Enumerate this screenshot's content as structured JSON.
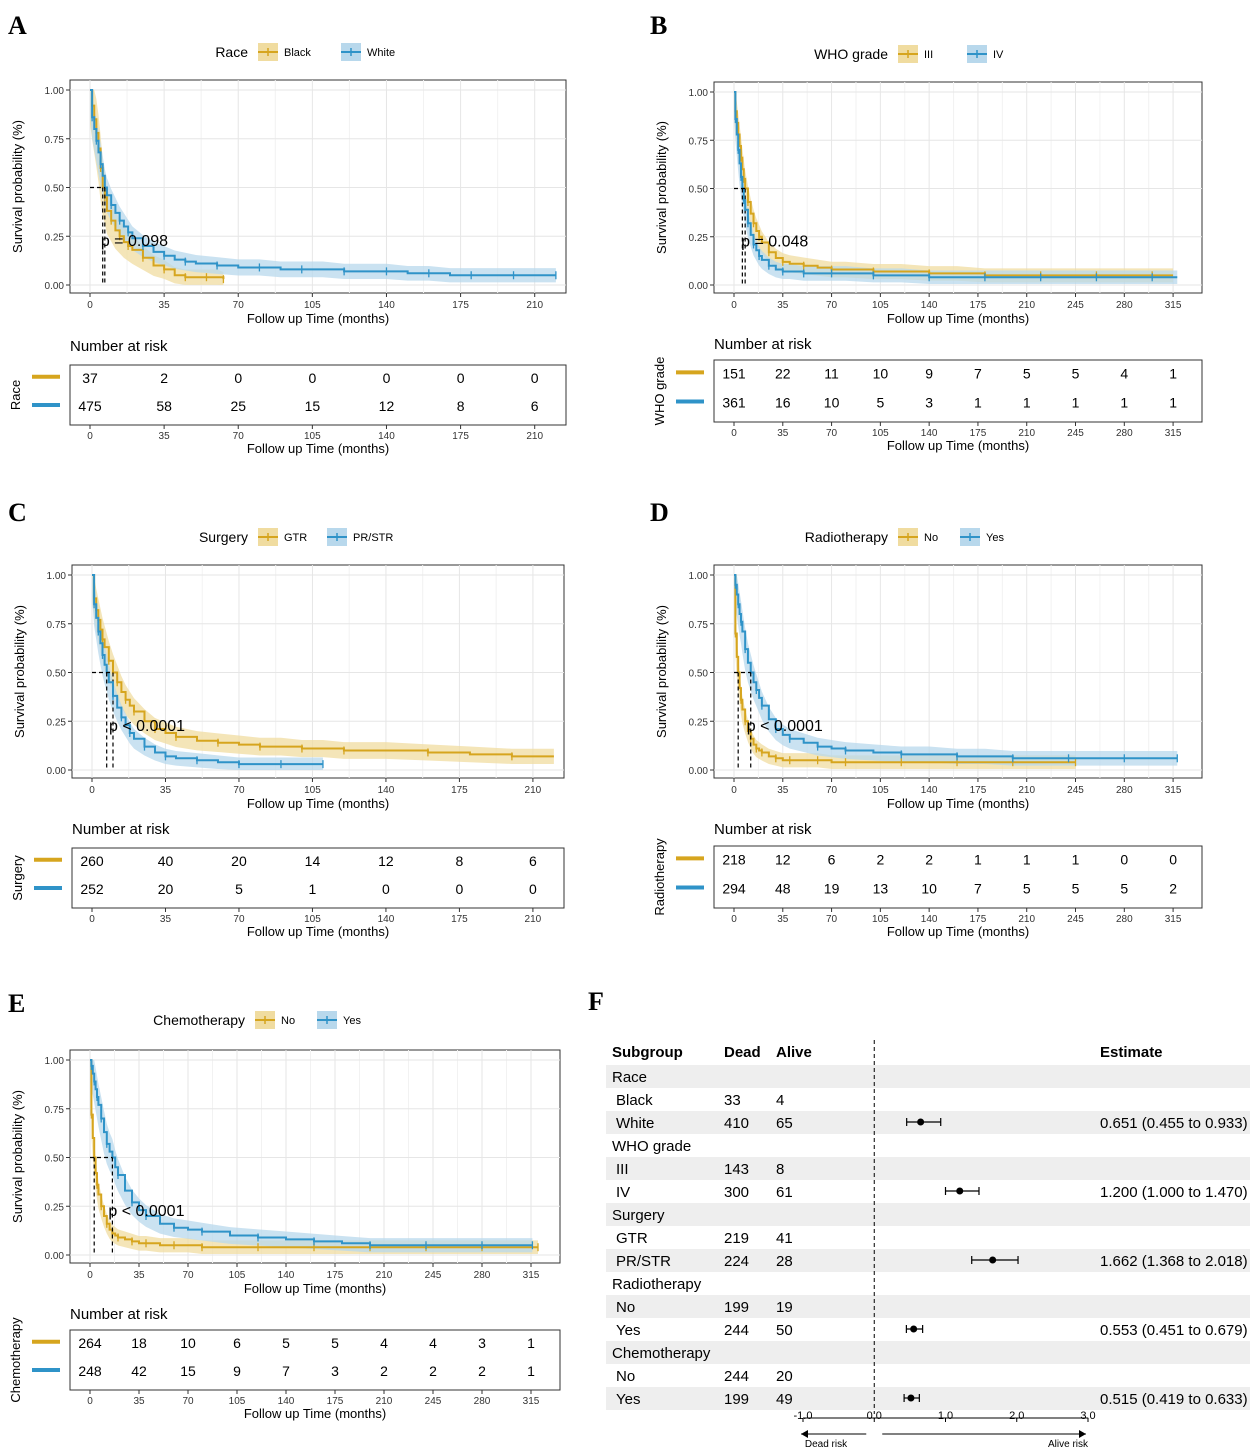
{
  "colors": {
    "black_or_no": "#d6a51e",
    "white_or_yes": "#2f93c8",
    "band_a": "#f0dca0",
    "band_b": "#b8d8ec",
    "forest_stripe": "#eeeeee"
  },
  "risk_title": "Number at risk",
  "y_axis_label": "Survival probability (%)",
  "x_axis_label": "Follow up Time (months)",
  "chart_data": [
    {
      "panel": "A",
      "type": "line",
      "legend_title": "Race",
      "legend_position": "top",
      "series": [
        {
          "name": "Black",
          "median": 6,
          "x": [
            0,
            1,
            2,
            3,
            4,
            5,
            6,
            7,
            8,
            10,
            12,
            14,
            16,
            18,
            20,
            25,
            30,
            35,
            40,
            45,
            50,
            55,
            60,
            63
          ],
          "y": [
            1.0,
            0.92,
            0.85,
            0.78,
            0.7,
            0.6,
            0.5,
            0.45,
            0.38,
            0.33,
            0.28,
            0.25,
            0.22,
            0.2,
            0.18,
            0.14,
            0.1,
            0.08,
            0.05,
            0.04,
            0.04,
            0.04,
            0.04,
            0.03
          ]
        },
        {
          "name": "White",
          "median": 7,
          "x": [
            0,
            1,
            2,
            3,
            4,
            5,
            6,
            7,
            8,
            10,
            12,
            14,
            16,
            18,
            20,
            25,
            30,
            35,
            40,
            45,
            50,
            60,
            70,
            80,
            90,
            100,
            110,
            120,
            130,
            140,
            150,
            160,
            170,
            180,
            190,
            200,
            210,
            220
          ],
          "y": [
            1.0,
            0.86,
            0.8,
            0.74,
            0.68,
            0.62,
            0.56,
            0.5,
            0.46,
            0.41,
            0.37,
            0.33,
            0.3,
            0.27,
            0.24,
            0.2,
            0.17,
            0.15,
            0.13,
            0.12,
            0.11,
            0.1,
            0.09,
            0.09,
            0.08,
            0.08,
            0.08,
            0.07,
            0.07,
            0.07,
            0.06,
            0.06,
            0.05,
            0.05,
            0.05,
            0.05,
            0.05,
            0.05
          ]
        }
      ],
      "pvalue": "p = 0.098",
      "ylim": [
        0,
        1
      ],
      "yticks": [
        "0.00",
        "0.25",
        "0.50",
        "0.75",
        "1.00"
      ],
      "xticks": [
        0,
        35,
        70,
        105,
        140,
        175,
        210
      ],
      "xmax": 221,
      "risk_label": "Race",
      "risk": [
        [
          37,
          2,
          0,
          0,
          0,
          0,
          0
        ],
        [
          475,
          58,
          25,
          15,
          12,
          8,
          6
        ]
      ]
    },
    {
      "panel": "B",
      "type": "line",
      "legend_title": "WHO grade",
      "legend_position": "top",
      "series": [
        {
          "name": "III",
          "median": 8,
          "x": [
            0,
            1,
            2,
            3,
            4,
            5,
            6,
            7,
            8,
            10,
            12,
            14,
            16,
            18,
            20,
            25,
            30,
            35,
            40,
            50,
            60,
            70,
            80,
            100,
            120,
            140,
            160,
            180,
            200,
            220,
            240,
            260,
            280,
            300,
            315
          ],
          "y": [
            1.0,
            0.9,
            0.84,
            0.78,
            0.72,
            0.66,
            0.6,
            0.55,
            0.5,
            0.43,
            0.37,
            0.32,
            0.28,
            0.25,
            0.22,
            0.17,
            0.14,
            0.12,
            0.11,
            0.1,
            0.09,
            0.08,
            0.08,
            0.07,
            0.07,
            0.06,
            0.06,
            0.05,
            0.05,
            0.05,
            0.05,
            0.05,
            0.05,
            0.05,
            0.05
          ]
        },
        {
          "name": "IV",
          "median": 6,
          "x": [
            0,
            1,
            2,
            3,
            4,
            5,
            6,
            7,
            8,
            10,
            12,
            14,
            16,
            18,
            20,
            25,
            30,
            35,
            40,
            50,
            60,
            70,
            80,
            100,
            120,
            140,
            160,
            180,
            200,
            220,
            240,
            260,
            280,
            300,
            318
          ],
          "y": [
            1.0,
            0.86,
            0.78,
            0.7,
            0.63,
            0.56,
            0.5,
            0.44,
            0.39,
            0.32,
            0.26,
            0.21,
            0.18,
            0.15,
            0.13,
            0.1,
            0.08,
            0.07,
            0.07,
            0.06,
            0.06,
            0.06,
            0.06,
            0.05,
            0.05,
            0.04,
            0.04,
            0.04,
            0.04,
            0.04,
            0.04,
            0.04,
            0.04,
            0.04,
            0.04
          ]
        }
      ],
      "pvalue": "p = 0.048",
      "ylim": [
        0,
        1
      ],
      "yticks": [
        "0.00",
        "0.25",
        "0.50",
        "0.75",
        "1.00"
      ],
      "xticks": [
        0,
        35,
        70,
        105,
        140,
        175,
        210,
        245,
        280,
        315
      ],
      "xmax": 330,
      "risk_label": "WHO grade",
      "risk": [
        [
          151,
          22,
          11,
          10,
          9,
          7,
          5,
          5,
          4,
          1
        ],
        [
          361,
          16,
          10,
          5,
          3,
          1,
          1,
          1,
          1,
          1
        ]
      ]
    },
    {
      "panel": "C",
      "type": "line",
      "legend_title": "Surgery",
      "legend_position": "top",
      "series": [
        {
          "name": "GTR",
          "median": 10,
          "x": [
            0,
            1,
            2,
            3,
            4,
            5,
            6,
            8,
            10,
            12,
            14,
            16,
            18,
            20,
            25,
            30,
            35,
            40,
            50,
            60,
            70,
            80,
            90,
            100,
            110,
            120,
            140,
            160,
            180,
            200,
            220
          ],
          "y": [
            1.0,
            0.88,
            0.82,
            0.77,
            0.72,
            0.67,
            0.63,
            0.56,
            0.5,
            0.45,
            0.4,
            0.36,
            0.33,
            0.3,
            0.25,
            0.21,
            0.19,
            0.17,
            0.15,
            0.14,
            0.13,
            0.12,
            0.12,
            0.11,
            0.11,
            0.1,
            0.1,
            0.09,
            0.08,
            0.07,
            0.07
          ]
        },
        {
          "name": "PR/STR",
          "median": 7,
          "x": [
            0,
            1,
            2,
            3,
            4,
            5,
            6,
            7,
            8,
            10,
            12,
            14,
            16,
            18,
            20,
            25,
            30,
            35,
            40,
            50,
            60,
            70,
            80,
            90,
            100,
            110
          ],
          "y": [
            1.0,
            0.85,
            0.78,
            0.71,
            0.65,
            0.59,
            0.54,
            0.5,
            0.45,
            0.38,
            0.32,
            0.27,
            0.23,
            0.19,
            0.16,
            0.12,
            0.09,
            0.07,
            0.06,
            0.05,
            0.04,
            0.03,
            0.03,
            0.03,
            0.03,
            0.03
          ]
        }
      ],
      "pvalue": "p < 0.0001",
      "ylim": [
        0,
        1
      ],
      "yticks": [
        "0.00",
        "0.25",
        "0.50",
        "0.75",
        "1.00"
      ],
      "xticks": [
        0,
        35,
        70,
        105,
        140,
        175,
        210
      ],
      "xmax": 221,
      "risk_label": "Surgery",
      "risk": [
        [
          260,
          40,
          20,
          14,
          12,
          8,
          6
        ],
        [
          252,
          20,
          5,
          1,
          0,
          0,
          0
        ]
      ]
    },
    {
      "panel": "D",
      "type": "line",
      "legend_title": "Radiotherapy",
      "legend_position": "top",
      "series": [
        {
          "name": "No",
          "median": 3,
          "x": [
            0,
            1,
            2,
            3,
            4,
            5,
            6,
            8,
            10,
            12,
            14,
            16,
            18,
            20,
            25,
            30,
            35,
            40,
            50,
            60,
            70,
            80,
            100,
            120,
            140,
            160,
            180,
            200,
            220,
            245
          ],
          "y": [
            1.0,
            0.7,
            0.58,
            0.5,
            0.42,
            0.36,
            0.31,
            0.25,
            0.2,
            0.16,
            0.13,
            0.11,
            0.1,
            0.09,
            0.07,
            0.06,
            0.05,
            0.05,
            0.05,
            0.05,
            0.04,
            0.04,
            0.04,
            0.04,
            0.04,
            0.04,
            0.04,
            0.04,
            0.04,
            0.04
          ]
        },
        {
          "name": "Yes",
          "median": 12,
          "x": [
            0,
            1,
            2,
            3,
            4,
            5,
            6,
            8,
            10,
            12,
            14,
            16,
            18,
            20,
            25,
            30,
            35,
            40,
            50,
            60,
            70,
            80,
            100,
            120,
            140,
            160,
            180,
            200,
            220,
            240,
            260,
            280,
            300,
            318
          ],
          "y": [
            1.0,
            0.95,
            0.9,
            0.85,
            0.8,
            0.76,
            0.71,
            0.62,
            0.55,
            0.5,
            0.45,
            0.41,
            0.37,
            0.33,
            0.26,
            0.21,
            0.18,
            0.16,
            0.14,
            0.12,
            0.11,
            0.1,
            0.09,
            0.08,
            0.08,
            0.07,
            0.07,
            0.06,
            0.06,
            0.06,
            0.06,
            0.06,
            0.06,
            0.06
          ]
        }
      ],
      "pvalue": "p < 0.0001",
      "ylim": [
        0,
        1
      ],
      "yticks": [
        "0.00",
        "0.25",
        "0.50",
        "0.75",
        "1.00"
      ],
      "xticks": [
        0,
        35,
        70,
        105,
        140,
        175,
        210,
        245,
        280,
        315
      ],
      "xmax": 330,
      "risk_label": "Radiotherapy",
      "risk": [
        [
          218,
          12,
          6,
          2,
          2,
          1,
          1,
          1,
          0,
          0
        ],
        [
          294,
          48,
          19,
          13,
          10,
          7,
          5,
          5,
          5,
          2
        ]
      ]
    },
    {
      "panel": "E",
      "type": "line",
      "legend_title": "Chemotherapy",
      "legend_position": "top",
      "series": [
        {
          "name": "No",
          "median": 3,
          "x": [
            0,
            1,
            2,
            3,
            4,
            5,
            6,
            8,
            10,
            12,
            14,
            16,
            18,
            20,
            25,
            30,
            35,
            40,
            50,
            60,
            70,
            80,
            100,
            120,
            140,
            160,
            180,
            200,
            220,
            240,
            260,
            280,
            300,
            320
          ],
          "y": [
            1.0,
            0.72,
            0.6,
            0.5,
            0.42,
            0.36,
            0.31,
            0.25,
            0.2,
            0.16,
            0.13,
            0.11,
            0.1,
            0.09,
            0.08,
            0.07,
            0.06,
            0.06,
            0.05,
            0.05,
            0.05,
            0.04,
            0.04,
            0.04,
            0.04,
            0.04,
            0.04,
            0.04,
            0.04,
            0.04,
            0.04,
            0.04,
            0.04,
            0.04
          ]
        },
        {
          "name": "Yes",
          "median": 16,
          "x": [
            0,
            1,
            2,
            3,
            4,
            5,
            6,
            8,
            10,
            12,
            14,
            16,
            18,
            20,
            25,
            30,
            35,
            40,
            50,
            60,
            70,
            80,
            100,
            120,
            140,
            160,
            180,
            200,
            220,
            240,
            260,
            280,
            300,
            316
          ],
          "y": [
            1.0,
            0.97,
            0.93,
            0.89,
            0.85,
            0.81,
            0.77,
            0.7,
            0.63,
            0.57,
            0.53,
            0.5,
            0.45,
            0.41,
            0.33,
            0.27,
            0.23,
            0.2,
            0.16,
            0.14,
            0.13,
            0.12,
            0.1,
            0.09,
            0.08,
            0.07,
            0.06,
            0.05,
            0.05,
            0.05,
            0.05,
            0.05,
            0.05,
            0.05
          ]
        }
      ],
      "pvalue": "p < 0.0001",
      "ylim": [
        0,
        1
      ],
      "yticks": [
        "0.00",
        "0.25",
        "0.50",
        "0.75",
        "1.00"
      ],
      "xticks": [
        0,
        35,
        70,
        105,
        140,
        175,
        210,
        245,
        280,
        315
      ],
      "xmax": 330,
      "risk_label": "Chemotherapy",
      "risk": [
        [
          264,
          18,
          10,
          6,
          5,
          5,
          4,
          4,
          3,
          1
        ],
        [
          248,
          42,
          15,
          9,
          7,
          3,
          2,
          2,
          2,
          1
        ]
      ]
    },
    {
      "panel": "F",
      "type": "table",
      "columns": [
        "Subgroup",
        "Dead",
        "Alive",
        "Estimate"
      ],
      "rows": [
        {
          "label": "Race",
          "group": true
        },
        {
          "label": "Black",
          "dead": "33",
          "alive": "4"
        },
        {
          "label": "White",
          "dead": "410",
          "alive": "65",
          "est": 0.651,
          "lo": 0.455,
          "hi": 0.933,
          "text": "0.651 (0.455 to 0.933)"
        },
        {
          "label": "WHO grade",
          "group": true
        },
        {
          "label": "III",
          "dead": "143",
          "alive": "8"
        },
        {
          "label": "IV",
          "dead": "300",
          "alive": "61",
          "est": 1.2,
          "lo": 1.0,
          "hi": 1.47,
          "text": "1.200 (1.000 to 1.470)"
        },
        {
          "label": "Surgery",
          "group": true
        },
        {
          "label": "GTR",
          "dead": "219",
          "alive": "41"
        },
        {
          "label": "PR/STR",
          "dead": "224",
          "alive": "28",
          "est": 1.662,
          "lo": 1.368,
          "hi": 2.018,
          "text": "1.662 (1.368 to 2.018)"
        },
        {
          "label": "Radiotherapy",
          "group": true
        },
        {
          "label": "No",
          "dead": "199",
          "alive": "19"
        },
        {
          "label": "Yes",
          "dead": "244",
          "alive": "50",
          "est": 0.553,
          "lo": 0.451,
          "hi": 0.679,
          "text": "0.553 (0.451 to 0.679)"
        },
        {
          "label": "Chemotherapy",
          "group": true
        },
        {
          "label": "No",
          "dead": "244",
          "alive": "20"
        },
        {
          "label": "Yes",
          "dead": "199",
          "alive": "49",
          "est": 0.515,
          "lo": 0.419,
          "hi": 0.633,
          "text": "0.515 (0.419 to 0.633)"
        }
      ],
      "xticks": [
        "-1.0",
        "0.0",
        "1.0",
        "2.0",
        "3.0"
      ],
      "xlim": [
        -1,
        3
      ],
      "arrow_left": "Dead risk",
      "arrow_right": "Alive risk"
    }
  ]
}
